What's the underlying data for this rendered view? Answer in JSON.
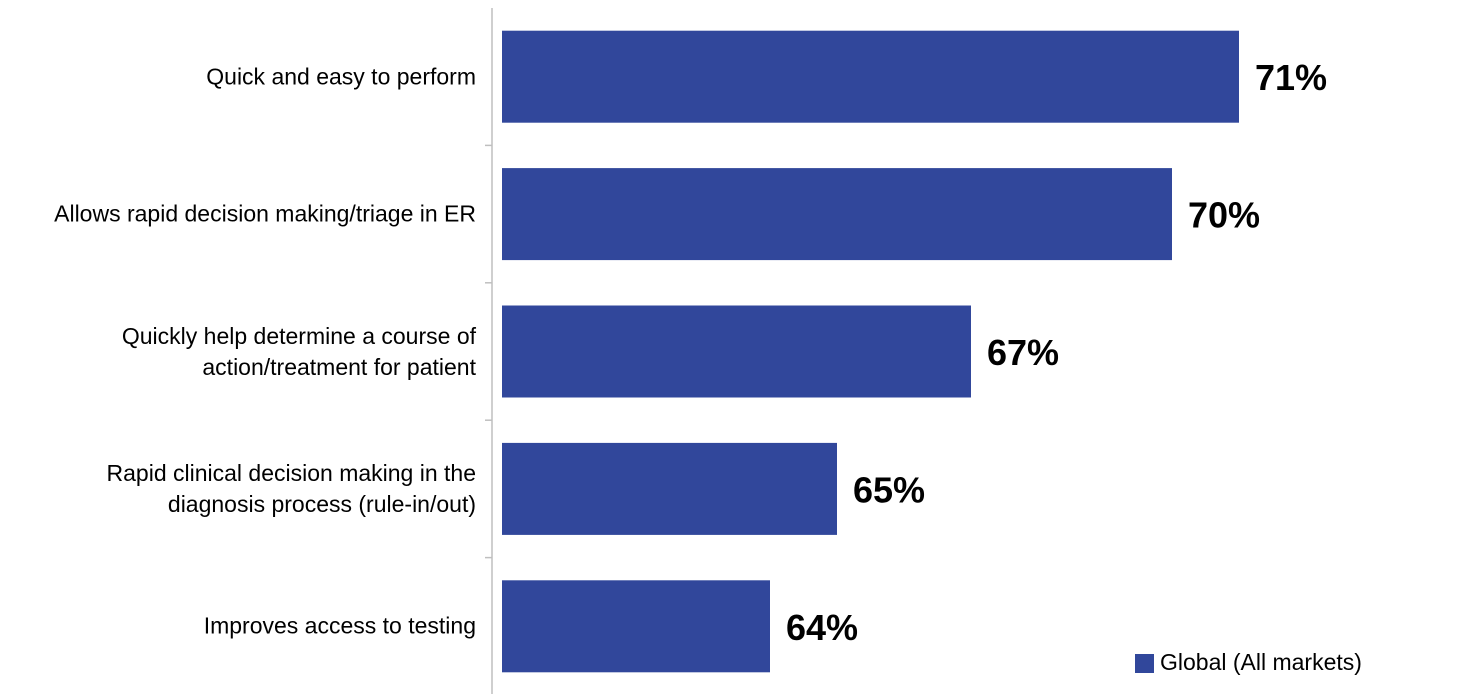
{
  "chart_data": {
    "type": "bar",
    "orientation": "horizontal",
    "categories": [
      "Quick and easy to perform",
      "Allows rapid decision making/triage in ER",
      "Quickly help determine a course of action/treatment for patient",
      "Rapid clinical decision making in the diagnosis process (rule-in/out)",
      "Improves access to testing"
    ],
    "series": [
      {
        "name": "Global (All markets)",
        "color": "#31479b",
        "values": [
          71,
          70,
          67,
          65,
          64
        ],
        "value_labels": [
          "71%",
          "70%",
          "67%",
          "65%",
          "64%"
        ]
      }
    ],
    "xlim": [
      60,
      74
    ],
    "legend": "bottom-right"
  }
}
